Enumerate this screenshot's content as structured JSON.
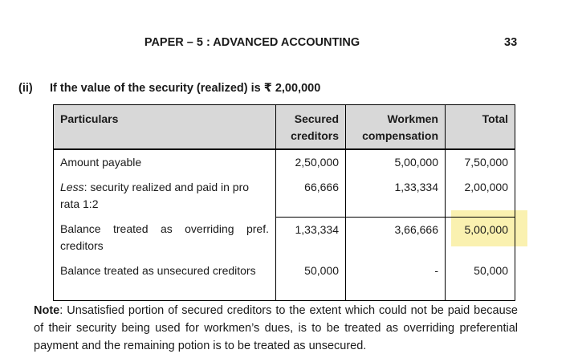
{
  "page_header": {
    "title": "PAPER – 5 : ADVANCED ACCOUNTING",
    "page_number": "33"
  },
  "section": {
    "marker": "(ii)",
    "title": "If the value of the security (realized) is ₹ 2,00,000"
  },
  "table": {
    "headers": {
      "particulars": "Particulars",
      "secured": "Secured creditors",
      "workmen": "Workmen compensation",
      "total": "Total"
    },
    "rows": [
      {
        "particulars": "Amount payable",
        "secured": "2,50,000",
        "workmen": "5,00,000",
        "total": "7,50,000"
      },
      {
        "particulars_italic": "Less",
        "particulars_rest": ": security realized and paid in pro rata 1:2",
        "secured": "66,666",
        "workmen": "1,33,334",
        "total": "2,00,000"
      },
      {
        "particulars": "Balance treated as overriding pref. creditors",
        "secured": "1,33,334",
        "workmen": "3,66,666",
        "total": "5,00,000",
        "total_highlighted": true
      },
      {
        "particulars": "Balance treated as unsecured creditors",
        "secured": "50,000",
        "workmen": "-",
        "total": "50,000"
      }
    ]
  },
  "note": {
    "label": "Note",
    "text": ": Unsatisfied portion of secured creditors to the extent which could not be paid because of their security being used for workmen’s dues, is to be treated as overriding preferential payment and the remaining potion is to be treated as unsecured."
  },
  "colors": {
    "table_header_bg": "#d8d8d8",
    "highlight": "#faf1b0",
    "border": "#000000"
  }
}
